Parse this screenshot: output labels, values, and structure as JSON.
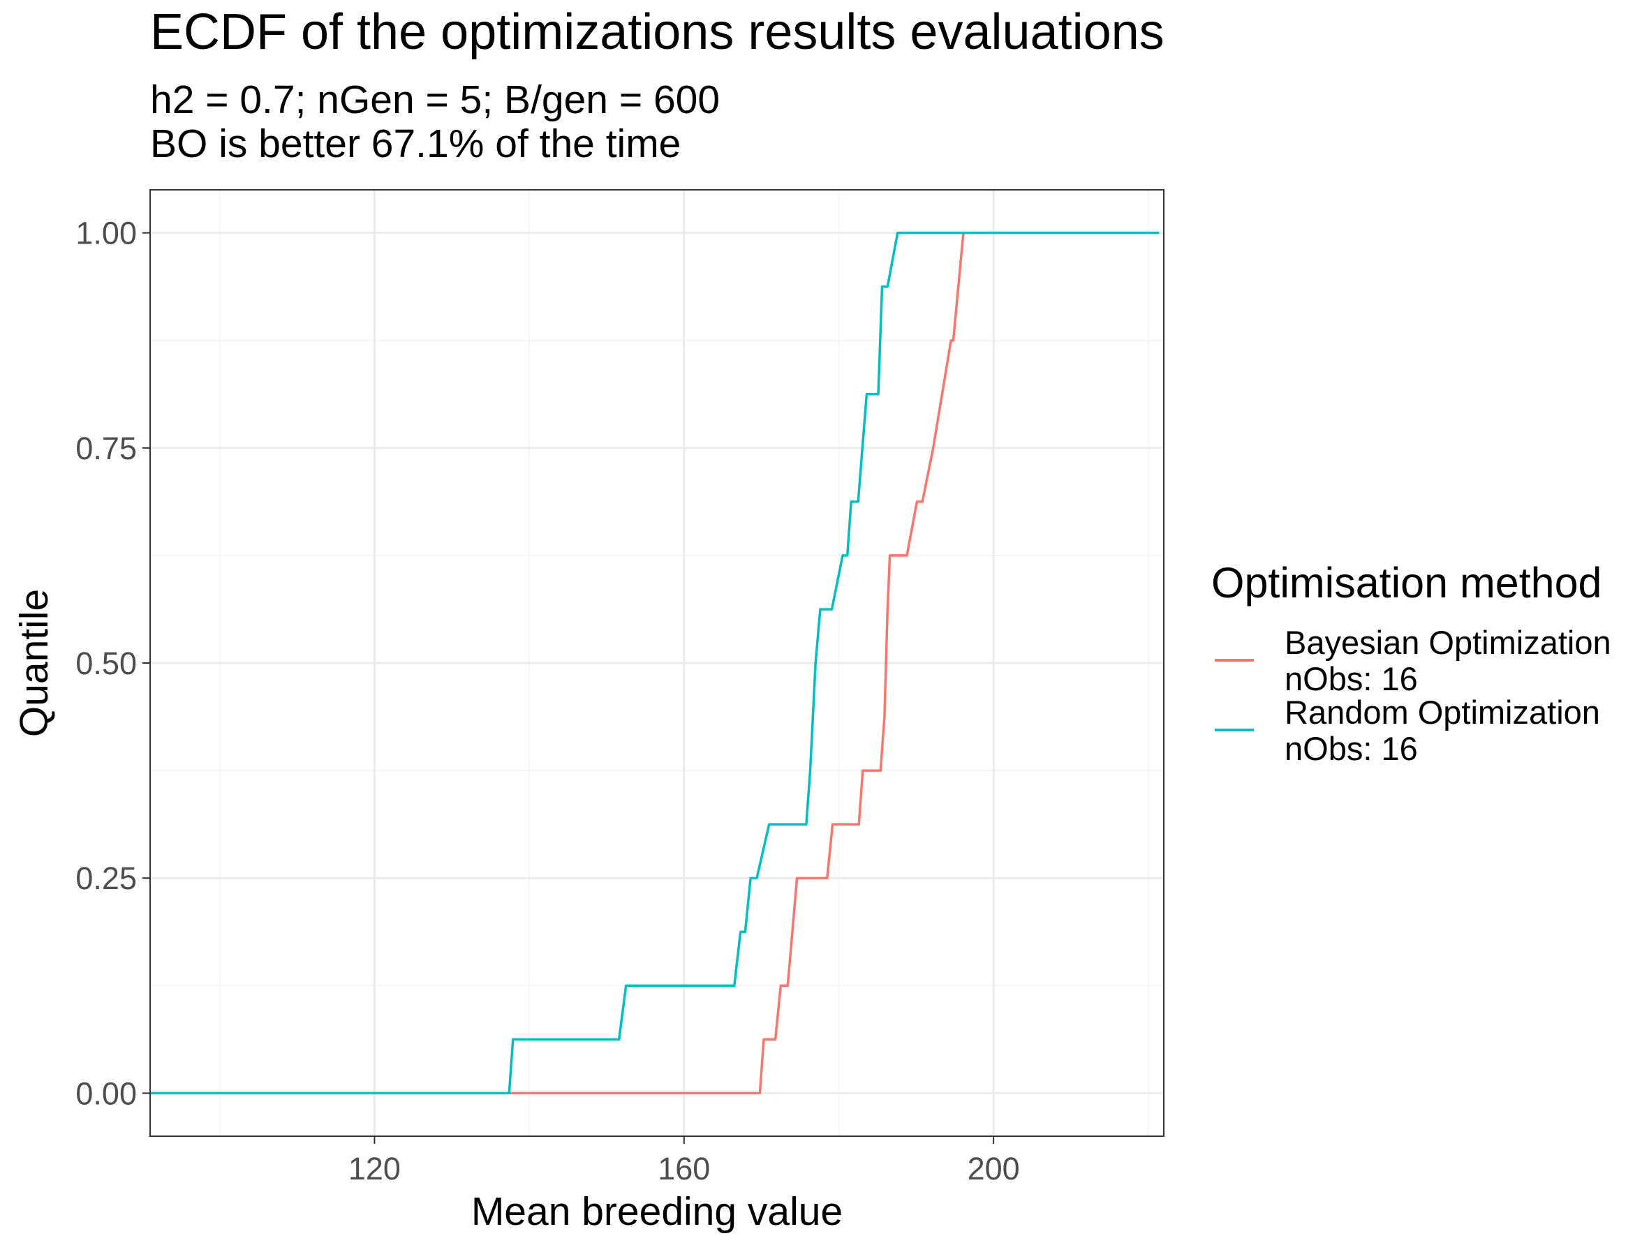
{
  "chart_data": {
    "type": "line",
    "title": "ECDF of the optimizations results evaluations",
    "subtitle": [
      "h2 = 0.7; nGen = 5; B/gen = 600",
      "BO is better 67.1% of the time"
    ],
    "xlabel": "Mean breeding value",
    "ylabel": "Quantile",
    "xlim": [
      91,
      222
    ],
    "ylim": [
      -0.05,
      1.05
    ],
    "xticks": [
      120,
      160,
      200
    ],
    "xtick_labels": [
      "120",
      "160",
      "200"
    ],
    "yticks": [
      0,
      0.25,
      0.5,
      0.75,
      1
    ],
    "ytick_labels": [
      "0.00",
      "0.25",
      "0.50",
      "0.75",
      "1.00"
    ],
    "grid": true,
    "legend": {
      "title": "Optimisation method",
      "position": "right"
    },
    "series": [
      {
        "name": "Bayesian Optimization",
        "label_lines": [
          "Bayesian Optimization",
          "nObs: 16"
        ],
        "color": "#F8766D",
        "x": [
          137.5,
          169.8,
          170.3,
          171.8,
          172.5,
          173.4,
          174.6,
          175.6,
          178.5,
          179.2,
          182.6,
          183.1,
          185.4,
          185.9,
          186.3,
          186.6,
          186.9,
          188.8,
          190.1,
          190.8,
          192.2,
          194.5,
          194.8,
          196.1
        ],
        "y": [
          0,
          0,
          0.0625,
          0.0625,
          0.125,
          0.125,
          0.25,
          0.25,
          0.25,
          0.3125,
          0.3125,
          0.375,
          0.375,
          0.4375,
          0.5625,
          0.625,
          0.625,
          0.625,
          0.6875,
          0.6875,
          0.75,
          0.875,
          0.875,
          1.0
        ]
      },
      {
        "name": "Random Optimization",
        "label_lines": [
          "Random Optimization",
          "nObs: 16"
        ],
        "color": "#00BFC4",
        "x": [
          91,
          137.4,
          137.9,
          151.6,
          152.5,
          166.5,
          167.3,
          167.9,
          168.6,
          169.4,
          171.0,
          171.8,
          175.8,
          176.3,
          177.0,
          177.6,
          178.6,
          179.1,
          180.5,
          181.1,
          181.6,
          182.5,
          183.6,
          184.6,
          185.1,
          185.6,
          186.3,
          187.6,
          196.0,
          221.4
        ],
        "y": [
          0,
          0,
          0.0625,
          0.0625,
          0.125,
          0.125,
          0.1875,
          0.1875,
          0.25,
          0.25,
          0.3125,
          0.3125,
          0.3125,
          0.375,
          0.5,
          0.5625,
          0.5625,
          0.5625,
          0.625,
          0.625,
          0.6875,
          0.6875,
          0.8125,
          0.8125,
          0.8125,
          0.9375,
          0.9375,
          1.0,
          1.0,
          1.0
        ]
      }
    ]
  }
}
